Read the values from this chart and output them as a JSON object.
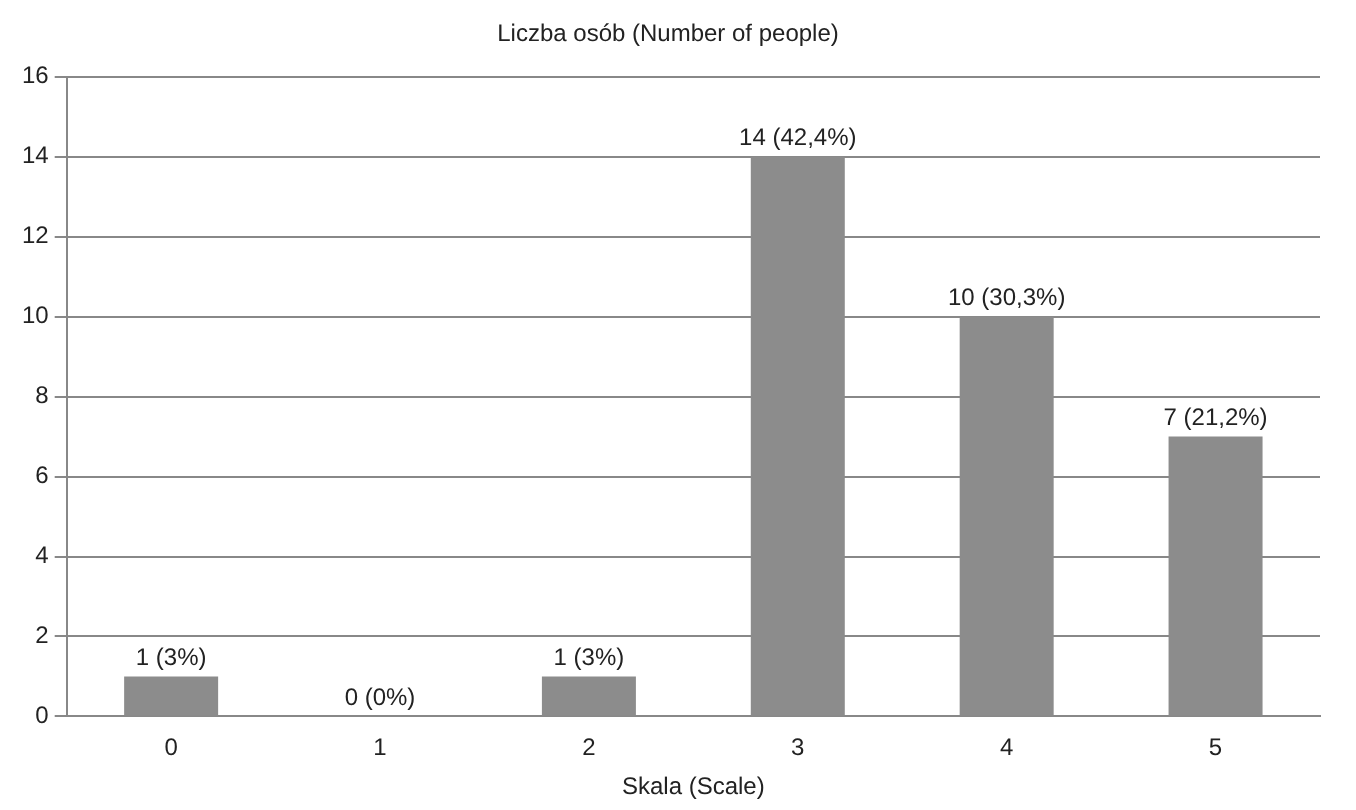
{
  "chart_data": {
    "type": "bar",
    "title": "Liczba osób (Number of people)",
    "xlabel": "Skala (Scale)",
    "categories": [
      "0",
      "1",
      "2",
      "3",
      "4",
      "5"
    ],
    "values": [
      1,
      0,
      1,
      14,
      10,
      7
    ],
    "color": "#8c8c8c",
    "value_labels": [
      "1 (3%)",
      "0 (0%)",
      "1 (3%)",
      "14 (42,4%)",
      "10 (30,3%)",
      "7 (21,2%)"
    ],
    "ylim": [
      0,
      16
    ],
    "yticks": [
      0,
      2,
      4,
      6,
      8,
      10,
      12,
      14,
      16
    ],
    "grid": "y",
    "legend": false
  }
}
